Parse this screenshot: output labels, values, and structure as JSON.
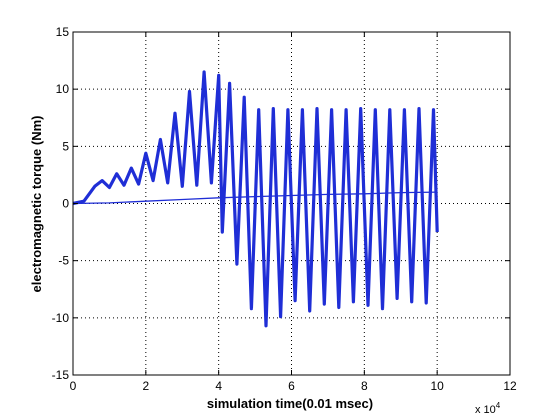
{
  "chart_data": {
    "type": "line",
    "title": "",
    "xlabel": "simulation time(0.01 msec)",
    "ylabel": "electromagnetic torque (Nm)",
    "x_multiplier_label": "x 10",
    "x_multiplier_exponent": "4",
    "xlim": [
      0,
      12
    ],
    "ylim": [
      -15,
      15
    ],
    "x_ticks": [
      0,
      2,
      4,
      6,
      8,
      10,
      12
    ],
    "y_ticks": [
      -15,
      -10,
      -5,
      0,
      5,
      10,
      15
    ],
    "x_tick_labels": [
      "0",
      "2",
      "4",
      "6",
      "8",
      "10",
      "12"
    ],
    "y_tick_labels": [
      "-15",
      "-10",
      "-5",
      "0",
      "5",
      "10",
      "15"
    ],
    "grid": true,
    "line_color": "#1f2ed6",
    "series": [
      {
        "x": [
          0,
          0.3,
          0.6,
          0.8,
          1.0,
          1.2,
          1.4,
          1.6,
          1.8,
          2.0,
          2.2,
          2.4,
          2.6,
          2.8,
          3.0,
          3.2,
          3.4,
          3.6,
          3.8,
          4.0,
          4.1,
          4.3,
          4.5,
          4.7,
          4.9,
          5.1,
          5.3,
          5.5,
          5.7,
          5.9,
          6.1,
          6.3,
          6.5,
          6.7,
          6.9,
          7.1,
          7.3,
          7.5,
          7.7,
          7.9,
          8.1,
          8.3,
          8.5,
          8.7,
          8.9,
          9.1,
          9.3,
          9.5,
          9.7,
          9.9,
          10.0
        ],
        "y": [
          0,
          0.2,
          1.5,
          2.0,
          1.4,
          2.6,
          1.6,
          3.1,
          1.7,
          4.4,
          2.0,
          5.6,
          1.8,
          7.9,
          1.5,
          9.8,
          1.6,
          11.5,
          1.8,
          11.2,
          -2.5,
          10.5,
          -5.3,
          9.3,
          -9.2,
          8.2,
          -10.7,
          8.3,
          -9.9,
          8.2,
          -8.5,
          8.2,
          -9.4,
          8.3,
          -8.8,
          8.2,
          -9.1,
          8.2,
          -8.6,
          8.3,
          -8.9,
          8.2,
          -9.2,
          8.2,
          -8.3,
          8.2,
          -8.6,
          8.3,
          -8.7,
          8.2,
          -2.5
        ]
      },
      {
        "x": [
          0,
          1,
          2,
          3,
          4,
          5,
          6,
          7,
          8,
          9,
          10
        ],
        "y": [
          0,
          0.05,
          0.2,
          0.35,
          0.5,
          0.6,
          0.7,
          0.8,
          0.85,
          0.95,
          1.0
        ]
      }
    ]
  }
}
